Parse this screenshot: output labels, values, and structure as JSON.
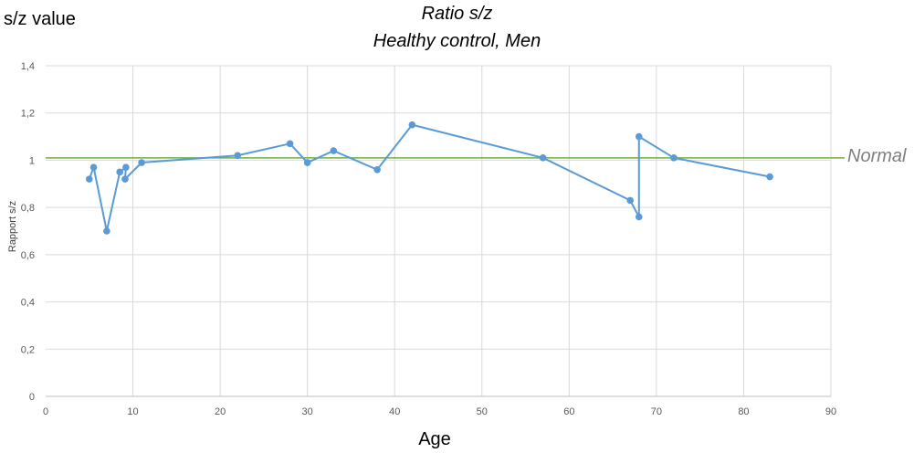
{
  "header": {
    "corner_label": "s/z value",
    "normal_label": "Normal"
  },
  "chart_data": {
    "type": "line",
    "title": "Ratio s/z",
    "subtitle": "Healthy control, Men",
    "xlabel": "Age",
    "ylabel": "Rapport s/z",
    "xlim": [
      0,
      90
    ],
    "ylim": [
      0,
      1.4
    ],
    "x_ticks": [
      "0",
      "10",
      "20",
      "30",
      "40",
      "50",
      "60",
      "70",
      "80",
      "90"
    ],
    "y_ticks": [
      "0",
      "0,2",
      "0,4",
      "0,6",
      "0,8",
      "1",
      "1,2",
      "1,4"
    ],
    "grid": true,
    "series": [
      {
        "color": "#5b9bd5",
        "points": [
          {
            "x": 5,
            "y": 0.92
          },
          {
            "x": 5.5,
            "y": 0.97
          },
          {
            "x": 7,
            "y": 0.7
          },
          {
            "x": 8.5,
            "y": 0.95
          },
          {
            "x": 9.2,
            "y": 0.97
          },
          {
            "x": 9.1,
            "y": 0.92
          },
          {
            "x": 11,
            "y": 0.99
          },
          {
            "x": 22,
            "y": 1.02
          },
          {
            "x": 28,
            "y": 1.07
          },
          {
            "x": 30,
            "y": 0.99
          },
          {
            "x": 33,
            "y": 1.04
          },
          {
            "x": 38,
            "y": 0.96
          },
          {
            "x": 42,
            "y": 1.15
          },
          {
            "x": 57,
            "y": 1.01
          },
          {
            "x": 67,
            "y": 0.83
          },
          {
            "x": 68,
            "y": 0.76
          },
          {
            "x": 68,
            "y": 1.1
          },
          {
            "x": 72,
            "y": 1.01
          },
          {
            "x": 83,
            "y": 0.93
          }
        ]
      }
    ],
    "reference_line": {
      "y": 1.01,
      "color": "#70ad47"
    }
  }
}
